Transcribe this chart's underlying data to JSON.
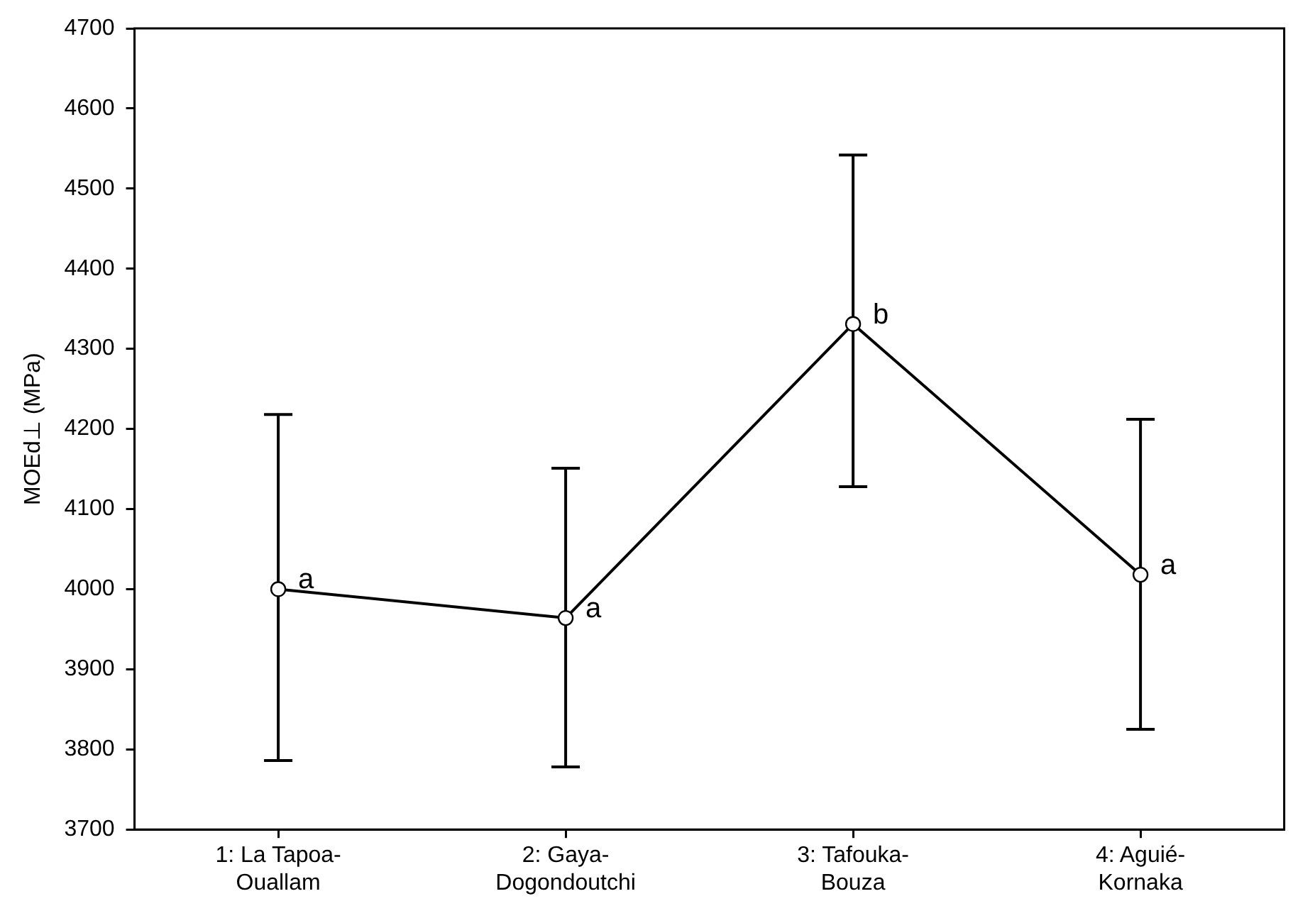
{
  "chart_data": {
    "type": "line",
    "ylabel": "MOEd⊥ (MPa)",
    "categories": [
      "1: La Tapoa-Ouallam",
      "2: Gaya-Dogondoutchi",
      "3: Tafouka-Bouza",
      "4: Aguié-Kornaka"
    ],
    "series": [
      {
        "color": "#000000",
        "values": [
          4000,
          3964,
          4331,
          4018
        ],
        "errors": [
          [
            3786,
            4218
          ],
          [
            3778,
            4151
          ],
          [
            4128,
            4542
          ],
          [
            3825,
            4212
          ]
        ]
      }
    ],
    "ylim": [
      3700,
      4700
    ],
    "yticks": [
      3700,
      3800,
      3900,
      4000,
      4100,
      4200,
      4300,
      4400,
      4500,
      4600,
      4700
    ],
    "grid": false,
    "legend": false,
    "marker": "circle",
    "line_style": "solid",
    "annotations": [
      {
        "text": "a",
        "x": "1: La Tapoa-Ouallam",
        "y": 4000
      },
      {
        "text": "a",
        "x": "2: Gaya-Dogondoutchi",
        "y": 3964
      },
      {
        "text": "b",
        "x": "3: Tafouka-Bouza",
        "y": 4331
      },
      {
        "text": "a",
        "x": "4: Aguié-Kornaka",
        "y": 4018
      }
    ]
  }
}
